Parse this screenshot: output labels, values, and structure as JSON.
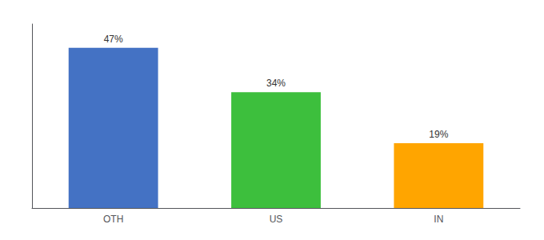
{
  "chart_data": {
    "type": "bar",
    "categories": [
      "OTH",
      "US",
      "IN"
    ],
    "values": [
      47,
      34,
      19
    ],
    "value_labels": [
      "47%",
      "34%",
      "19%"
    ],
    "colors": [
      "#4472C4",
      "#3DBF3D",
      "#FFA500"
    ],
    "ylim": [
      0,
      54
    ],
    "grid": false,
    "data_labels": true,
    "tick_labels": "x"
  }
}
